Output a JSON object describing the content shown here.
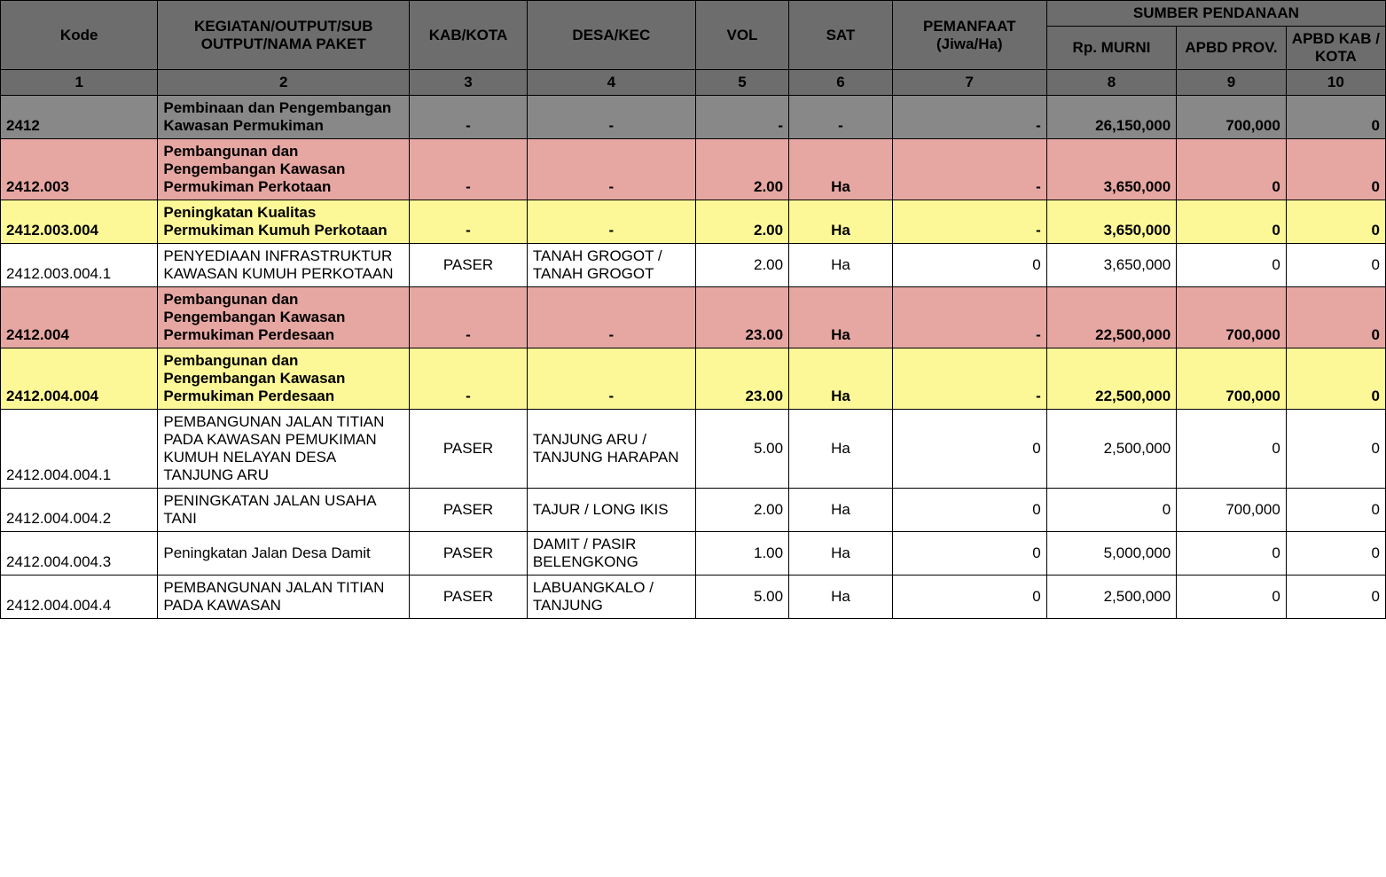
{
  "header": {
    "kode": "Kode",
    "kegiatan": "KEGIATAN/OUTPUT/SUB OUTPUT/NAMA PAKET",
    "kab": "KAB/KOTA",
    "desa": "DESA/KEC",
    "vol": "VOL",
    "sat": "SAT",
    "pemanfaat": "PEMANFAAT (Jiwa/Ha)",
    "sumber": "SUMBER PENDANAAN",
    "rp_murni": "Rp. MURNI",
    "apbd_prov": "APBD PROV.",
    "apbd_kab": "APBD KAB / KOTA"
  },
  "colnums": [
    "1",
    "2",
    "3",
    "4",
    "5",
    "6",
    "7",
    "8",
    "9",
    "10"
  ],
  "rows": [
    {
      "style": "row-gray",
      "kode": "2412",
      "kegiatan": "Pembinaan dan Pengembangan Kawasan Permukiman",
      "kab": "-",
      "desa": "-",
      "vol": "-",
      "sat": "-",
      "pemanfaat": "-",
      "rp_murni": "26,150,000",
      "apbd_prov": "700,000",
      "apbd_kab": "0"
    },
    {
      "style": "row-pink",
      "kode": "2412.003",
      "kegiatan": "Pembangunan dan Pengembangan Kawasan Permukiman Perkotaan",
      "kab": "-",
      "desa": "-",
      "vol": "2.00",
      "sat": "Ha",
      "pemanfaat": "-",
      "rp_murni": "3,650,000",
      "apbd_prov": "0",
      "apbd_kab": "0"
    },
    {
      "style": "row-yellow",
      "kode": "2412.003.004",
      "kegiatan": "Peningkatan Kualitas Permukiman Kumuh Perkotaan",
      "kab": "-",
      "desa": "-",
      "vol": "2.00",
      "sat": "Ha",
      "pemanfaat": "-",
      "rp_murni": "3,650,000",
      "apbd_prov": "0",
      "apbd_kab": "0"
    },
    {
      "style": "row-white",
      "kode": "2412.003.004.1",
      "kegiatan": "PENYEDIAAN INFRASTRUKTUR KAWASAN KUMUH PERKOTAAN",
      "kab": "PASER",
      "desa": "TANAH GROGOT / TANAH GROGOT",
      "vol": "2.00",
      "sat": "Ha",
      "pemanfaat": "0",
      "rp_murni": "3,650,000",
      "apbd_prov": "0",
      "apbd_kab": "0"
    },
    {
      "style": "row-pink",
      "kode": "2412.004",
      "kegiatan": "Pembangunan dan Pengembangan Kawasan Permukiman Perdesaan",
      "kab": "-",
      "desa": "-",
      "vol": "23.00",
      "sat": "Ha",
      "pemanfaat": "-",
      "rp_murni": "22,500,000",
      "apbd_prov": "700,000",
      "apbd_kab": "0"
    },
    {
      "style": "row-yellow",
      "kode": "2412.004.004",
      "kegiatan": "Pembangunan dan Pengembangan Kawasan Permukiman Perdesaan",
      "kab": "-",
      "desa": "-",
      "vol": "23.00",
      "sat": "Ha",
      "pemanfaat": "-",
      "rp_murni": "22,500,000",
      "apbd_prov": "700,000",
      "apbd_kab": "0"
    },
    {
      "style": "row-white",
      "kode": "2412.004.004.1",
      "kegiatan": "PEMBANGUNAN JALAN TITIAN PADA KAWASAN PEMUKIMAN KUMUH NELAYAN DESA TANJUNG ARU",
      "kab": "PASER",
      "desa": "TANJUNG ARU / TANJUNG HARAPAN",
      "vol": "5.00",
      "sat": "Ha",
      "pemanfaat": "0",
      "rp_murni": "2,500,000",
      "apbd_prov": "0",
      "apbd_kab": "0"
    },
    {
      "style": "row-white",
      "kode": "2412.004.004.2",
      "kegiatan": "PENINGKATAN JALAN USAHA TANI",
      "kab": "PASER",
      "desa": "TAJUR / LONG IKIS",
      "vol": "2.00",
      "sat": "Ha",
      "pemanfaat": "0",
      "rp_murni": "0",
      "apbd_prov": "700,000",
      "apbd_kab": "0"
    },
    {
      "style": "row-white",
      "kode": "2412.004.004.3",
      "kegiatan": "Peningkatan Jalan Desa Damit",
      "kab": "PASER",
      "desa": "DAMIT / PASIR BELENGKONG",
      "vol": "1.00",
      "sat": "Ha",
      "pemanfaat": "0",
      "rp_murni": "5,000,000",
      "apbd_prov": "0",
      "apbd_kab": "0"
    },
    {
      "style": "row-white",
      "kode": "2412.004.004.4",
      "kegiatan": "PEMBANGUNAN JALAN TITIAN PADA KAWASAN",
      "kab": "PASER",
      "desa": "LABUANGKALO / TANJUNG",
      "vol": "5.00",
      "sat": "Ha",
      "pemanfaat": "0",
      "rp_murni": "2,500,000",
      "apbd_prov": "0",
      "apbd_kab": "0"
    }
  ]
}
